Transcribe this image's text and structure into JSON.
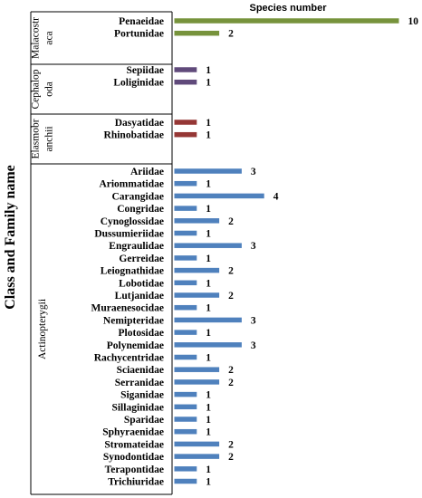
{
  "chart_data": {
    "type": "bar",
    "orientation": "horizontal",
    "title": "Species number",
    "ylabel": "Class and Family name",
    "xlim": [
      0,
      10
    ],
    "grid": false,
    "groups": [
      {
        "class_name": "Malacostraca",
        "class_lines": [
          "Malacostr",
          "aca"
        ],
        "color": "#77933C",
        "categories": [
          "Penaeidae",
          "Portunidae"
        ],
        "values": [
          10,
          2
        ],
        "labels": [
          "10",
          "2"
        ]
      },
      {
        "class_name": "Cephalopoda",
        "class_lines": [
          "Cephalop",
          "oda"
        ],
        "color": "#604A7B",
        "categories": [
          "Sepiidae",
          "Loliginidae"
        ],
        "values": [
          1,
          1
        ],
        "labels": [
          "1",
          "1"
        ]
      },
      {
        "class_name": "Elasmobranchii",
        "class_lines": [
          "Elasmobr",
          "anchii"
        ],
        "color": "#953735",
        "categories": [
          "Dasyatidae",
          "Rhinobatidae"
        ],
        "values": [
          1,
          1
        ],
        "labels": [
          "1",
          "1"
        ]
      },
      {
        "class_name": "Actinopterygii",
        "class_lines": [
          "Actinopterygii"
        ],
        "color": "#4F81BD",
        "categories": [
          "Ariidae",
          "Ariommatidae",
          "Carangidae",
          "Congridae",
          "Cynoglossidae",
          "Dussumieriidae",
          "Engraulidae",
          "Gerreidae",
          "Leiognathidae",
          "Lobotidae",
          "Lutjanidae",
          "Muraenesocidae",
          "Nemipteridae",
          "Plotosidae",
          "Polynemidae",
          "Rachycentridae",
          "Sciaenidae",
          "Serranidae",
          "Siganidae",
          "Sillaginidae",
          "Sparidae",
          "Sphyraenidae",
          "Stromateidae",
          "Synodontidae",
          "Terapontidae",
          "Trichiuridae"
        ],
        "values": [
          3,
          1,
          4,
          1,
          2,
          1,
          3,
          1,
          2,
          1,
          2,
          1,
          3,
          1,
          3,
          1,
          2,
          2,
          1,
          1,
          1,
          1,
          2,
          2,
          1,
          1
        ],
        "labels": [
          "3",
          "1",
          "4",
          "1",
          "2",
          "1",
          "3",
          "1",
          "2",
          "1",
          "2",
          "1",
          "3",
          "1",
          "3",
          "1",
          "2",
          "2",
          "1",
          "1",
          "1",
          "1",
          "2",
          "2",
          "1",
          "1"
        ]
      }
    ]
  }
}
